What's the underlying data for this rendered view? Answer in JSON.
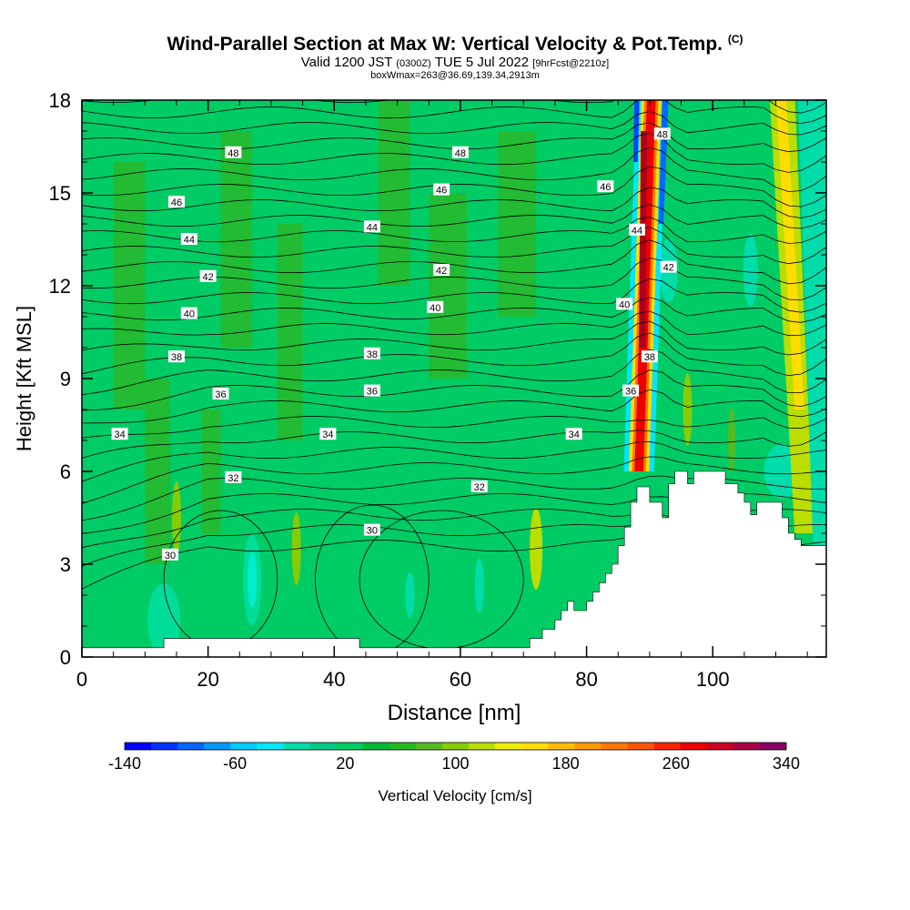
{
  "chart_data": {
    "type": "heatmap",
    "title": "Wind-Parallel Section at Max W: Vertical Velocity & Pot.Temp.",
    "title_mark": "(C)",
    "subtitle_main": "Valid 1200 JST",
    "subtitle_zulu": "(0300Z)",
    "subtitle_date": "TUE 5 Jul 2022",
    "subtitle_run": "[9hrFcst@2210z]",
    "subtitle2": "boxWmax=263@36.69,139.34,2913m",
    "xlabel": "Distance [nm]",
    "ylabel": "Height [Kft MSL]",
    "xlim": [
      0,
      118
    ],
    "ylim": [
      0,
      18
    ],
    "xticks": [
      "0",
      "20",
      "40",
      "60",
      "80",
      "100"
    ],
    "yticks": [
      "0",
      "3",
      "6",
      "9",
      "12",
      "15",
      "18"
    ],
    "grid": false,
    "colorbar": {
      "label": "Vertical Velocity [cm/s]",
      "range": [
        -140,
        340
      ],
      "step": 20,
      "tick_labels": [
        "-140",
        "-60",
        "20",
        "100",
        "180",
        "260",
        "340"
      ],
      "colors": [
        "#0000ff",
        "#0033ff",
        "#0066ff",
        "#0099ff",
        "#00ccff",
        "#00e6ff",
        "#00ddaa",
        "#00cc88",
        "#00cc66",
        "#00bb33",
        "#22bb22",
        "#55bb22",
        "#88cc00",
        "#bbdd00",
        "#eeee00",
        "#ffdd00",
        "#ffbb00",
        "#ff9900",
        "#ff7700",
        "#ff5500",
        "#ff2200",
        "#ee0000",
        "#cc0022",
        "#aa0044",
        "#880066"
      ]
    },
    "potential_temperature_contours": {
      "units_label": "Pot.Temp.",
      "labels": [
        {
          "text": "48",
          "x": 24,
          "y": 16.3
        },
        {
          "text": "48",
          "x": 60,
          "y": 16.3
        },
        {
          "text": "48",
          "x": 92,
          "y": 16.9
        },
        {
          "text": "46",
          "x": 15,
          "y": 14.7
        },
        {
          "text": "46",
          "x": 57,
          "y": 15.1
        },
        {
          "text": "46",
          "x": 83,
          "y": 15.2
        },
        {
          "text": "44",
          "x": 17,
          "y": 13.5
        },
        {
          "text": "44",
          "x": 46,
          "y": 13.9
        },
        {
          "text": "44",
          "x": 88,
          "y": 13.8
        },
        {
          "text": "42",
          "x": 20,
          "y": 12.3
        },
        {
          "text": "42",
          "x": 57,
          "y": 12.5
        },
        {
          "text": "42",
          "x": 93,
          "y": 12.6
        },
        {
          "text": "40",
          "x": 17,
          "y": 11.1
        },
        {
          "text": "40",
          "x": 56,
          "y": 11.3
        },
        {
          "text": "40",
          "x": 86,
          "y": 11.4
        },
        {
          "text": "38",
          "x": 15,
          "y": 9.7
        },
        {
          "text": "38",
          "x": 46,
          "y": 9.8
        },
        {
          "text": "38",
          "x": 90,
          "y": 9.7
        },
        {
          "text": "36",
          "x": 22,
          "y": 8.5
        },
        {
          "text": "36",
          "x": 46,
          "y": 8.6
        },
        {
          "text": "36",
          "x": 87,
          "y": 8.6
        },
        {
          "text": "34",
          "x": 6,
          "y": 7.2
        },
        {
          "text": "34",
          "x": 39,
          "y": 7.2
        },
        {
          "text": "34",
          "x": 78,
          "y": 7.2
        },
        {
          "text": "32",
          "x": 24,
          "y": 5.8
        },
        {
          "text": "32",
          "x": 63,
          "y": 5.5
        },
        {
          "text": "30",
          "x": 14,
          "y": 3.3
        },
        {
          "text": "30",
          "x": 46,
          "y": 4.1
        }
      ]
    },
    "max_updraft_column": {
      "x_center": 89.5,
      "peak_value": 263
    },
    "terrain_profile": {
      "x": [
        0,
        13,
        13,
        44,
        44,
        71,
        71,
        73,
        73,
        75,
        75,
        76,
        76,
        77,
        77,
        78,
        78,
        80,
        80,
        81,
        81,
        82,
        82,
        83,
        83,
        84,
        84,
        85,
        85,
        86,
        86,
        87,
        87,
        88,
        88,
        90,
        90,
        92,
        92,
        93,
        93,
        94,
        94,
        96,
        96,
        97,
        97,
        102,
        102,
        104,
        104,
        105,
        105,
        106,
        106,
        107,
        107,
        111,
        111,
        112,
        112,
        113,
        113,
        114,
        114,
        116,
        116,
        118
      ],
      "y": [
        0.3,
        0.3,
        0.6,
        0.6,
        0.3,
        0.3,
        0.6,
        0.6,
        0.9,
        0.9,
        1.2,
        1.2,
        1.5,
        1.5,
        1.8,
        1.8,
        1.5,
        1.5,
        1.8,
        1.8,
        2.1,
        2.1,
        2.4,
        2.4,
        2.7,
        2.7,
        3.0,
        3.0,
        3.6,
        3.6,
        4.2,
        4.2,
        5.0,
        5.0,
        5.5,
        5.5,
        5.0,
        5.0,
        4.5,
        4.5,
        5.6,
        5.6,
        6.0,
        6.0,
        5.6,
        5.6,
        6.0,
        6.0,
        5.6,
        5.6,
        5.3,
        5.3,
        5.0,
        5.0,
        4.6,
        4.6,
        5.0,
        5.0,
        4.5,
        4.5,
        4.0,
        4.0,
        3.8,
        3.8,
        3.6,
        3.6,
        3.6,
        3.6
      ]
    }
  }
}
